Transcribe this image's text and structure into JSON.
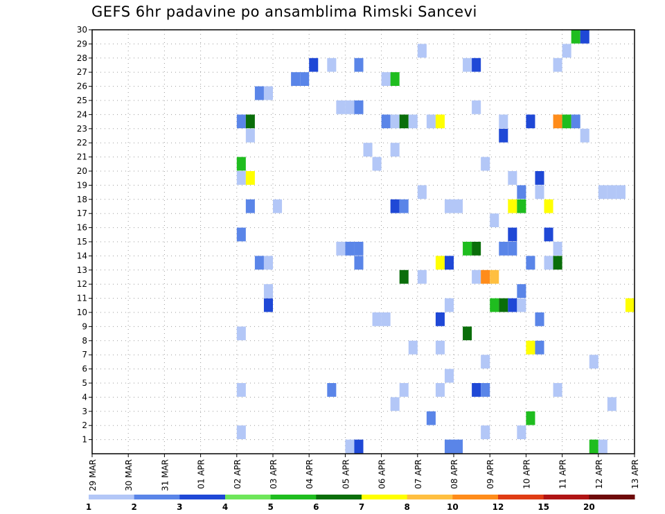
{
  "chart_data": {
    "type": "heatmap",
    "title": "GEFS 6hr padavine po ansamblima Rimski Sancevi",
    "x_tick_labels": [
      "29 MAR",
      "30 MAR",
      "31 MAR",
      "01 APR",
      "02 APR",
      "03 APR",
      "04 APR",
      "05 APR",
      "06 APR",
      "07 APR",
      "08 APR",
      "09 APR",
      "10 APR",
      "11 APR",
      "12 APR",
      "13 APR"
    ],
    "y_tick_labels": [
      "1",
      "2",
      "3",
      "4",
      "5",
      "6",
      "7",
      "8",
      "9",
      "10",
      "11",
      "12",
      "13",
      "14",
      "15",
      "16",
      "17",
      "18",
      "19",
      "20",
      "21",
      "22",
      "23",
      "24",
      "25",
      "26",
      "27",
      "28",
      "29",
      "30"
    ],
    "y_range": [
      0,
      30
    ],
    "x_range": [
      0,
      60
    ],
    "grid": true,
    "colorbar": {
      "labels": [
        "1",
        "2",
        "3",
        "4",
        "5",
        "6",
        "7",
        "8",
        "10",
        "12",
        "15",
        "20"
      ],
      "colors": [
        "#b3c7f7",
        "#5a85e8",
        "#1f48d6",
        "#6ee65a",
        "#1fbd1f",
        "#0a6e0a",
        "#ffff00",
        "#ffbf40",
        "#ff8c1a",
        "#e03c14",
        "#b01414",
        "#6e0a0a"
      ]
    },
    "cells": [
      [
        54,
        30,
        5
      ],
      [
        55,
        30,
        3
      ],
      [
        65,
        30,
        1
      ],
      [
        66,
        30,
        1
      ],
      [
        37,
        29,
        1
      ],
      [
        53,
        29,
        1
      ],
      [
        25,
        28,
        3
      ],
      [
        27,
        28,
        1
      ],
      [
        30,
        28,
        2
      ],
      [
        42,
        28,
        1
      ],
      [
        43,
        28,
        3
      ],
      [
        52,
        28,
        1
      ],
      [
        23,
        27,
        2
      ],
      [
        24,
        27,
        2
      ],
      [
        33,
        27,
        1
      ],
      [
        34,
        27,
        5
      ],
      [
        19,
        26,
        2
      ],
      [
        20,
        26,
        1
      ],
      [
        28,
        25,
        1
      ],
      [
        29,
        25,
        1
      ],
      [
        30,
        25,
        2
      ],
      [
        43,
        25,
        1
      ],
      [
        17,
        24,
        2
      ],
      [
        18,
        24,
        6
      ],
      [
        33,
        24,
        2
      ],
      [
        34,
        24,
        1
      ],
      [
        35,
        24,
        6
      ],
      [
        36,
        24,
        1
      ],
      [
        38,
        24,
        1
      ],
      [
        39,
        24,
        7
      ],
      [
        46,
        24,
        1
      ],
      [
        49,
        24,
        3
      ],
      [
        52,
        24,
        9
      ],
      [
        53,
        24,
        5
      ],
      [
        54,
        24,
        2
      ],
      [
        18,
        23,
        1
      ],
      [
        46,
        23,
        3
      ],
      [
        55,
        23,
        1
      ],
      [
        31,
        22,
        1
      ],
      [
        34,
        22,
        1
      ],
      [
        17,
        21,
        5
      ],
      [
        32,
        21,
        1
      ],
      [
        44,
        21,
        1
      ],
      [
        17,
        20,
        1
      ],
      [
        18,
        20,
        7
      ],
      [
        47,
        20,
        1
      ],
      [
        50,
        20,
        3
      ],
      [
        37,
        19,
        1
      ],
      [
        48,
        19,
        2
      ],
      [
        50,
        19,
        1
      ],
      [
        57,
        19,
        1
      ],
      [
        58,
        19,
        1
      ],
      [
        59,
        19,
        1
      ],
      [
        18,
        18,
        2
      ],
      [
        21,
        18,
        1
      ],
      [
        34,
        18,
        3
      ],
      [
        35,
        18,
        2
      ],
      [
        40,
        18,
        1
      ],
      [
        41,
        18,
        1
      ],
      [
        47,
        18,
        7
      ],
      [
        48,
        18,
        5
      ],
      [
        51,
        18,
        7
      ],
      [
        45,
        17,
        1
      ],
      [
        17,
        16,
        2
      ],
      [
        47,
        16,
        3
      ],
      [
        51,
        16,
        3
      ],
      [
        28,
        15,
        1
      ],
      [
        29,
        15,
        2
      ],
      [
        30,
        15,
        2
      ],
      [
        42,
        15,
        5
      ],
      [
        43,
        15,
        6
      ],
      [
        46,
        15,
        2
      ],
      [
        47,
        15,
        2
      ],
      [
        52,
        15,
        1
      ],
      [
        19,
        14,
        2
      ],
      [
        20,
        14,
        1
      ],
      [
        30,
        14,
        2
      ],
      [
        39,
        14,
        7
      ],
      [
        40,
        14,
        3
      ],
      [
        49,
        14,
        2
      ],
      [
        51,
        14,
        1
      ],
      [
        52,
        14,
        6
      ],
      [
        35,
        13,
        6
      ],
      [
        37,
        13,
        1
      ],
      [
        43,
        13,
        1
      ],
      [
        44,
        13,
        9
      ],
      [
        45,
        13,
        8
      ],
      [
        20,
        12,
        1
      ],
      [
        48,
        12,
        2
      ],
      [
        20,
        11,
        3
      ],
      [
        40,
        11,
        1
      ],
      [
        45,
        11,
        5
      ],
      [
        46,
        11,
        6
      ],
      [
        47,
        11,
        3
      ],
      [
        48,
        11,
        1
      ],
      [
        60,
        11,
        7
      ],
      [
        32,
        10,
        1
      ],
      [
        33,
        10,
        1
      ],
      [
        39,
        10,
        3
      ],
      [
        50,
        10,
        2
      ],
      [
        17,
        9,
        1
      ],
      [
        42,
        9,
        6
      ],
      [
        36,
        8,
        1
      ],
      [
        39,
        8,
        1
      ],
      [
        49,
        8,
        7
      ],
      [
        50,
        8,
        2
      ],
      [
        44,
        7,
        1
      ],
      [
        56,
        7,
        1
      ],
      [
        40,
        6,
        1
      ],
      [
        17,
        5,
        1
      ],
      [
        27,
        5,
        2
      ],
      [
        35,
        5,
        1
      ],
      [
        39,
        5,
        1
      ],
      [
        43,
        5,
        3
      ],
      [
        44,
        5,
        2
      ],
      [
        52,
        5,
        1
      ],
      [
        34,
        4,
        1
      ],
      [
        58,
        4,
        1
      ],
      [
        38,
        3,
        2
      ],
      [
        49,
        3,
        5
      ],
      [
        17,
        2,
        1
      ],
      [
        44,
        2,
        1
      ],
      [
        48,
        2,
        1
      ],
      [
        29,
        1,
        1
      ],
      [
        30,
        1,
        3
      ],
      [
        40,
        1,
        2
      ],
      [
        41,
        1,
        2
      ],
      [
        56,
        1,
        5
      ],
      [
        57,
        1,
        1
      ]
    ]
  }
}
